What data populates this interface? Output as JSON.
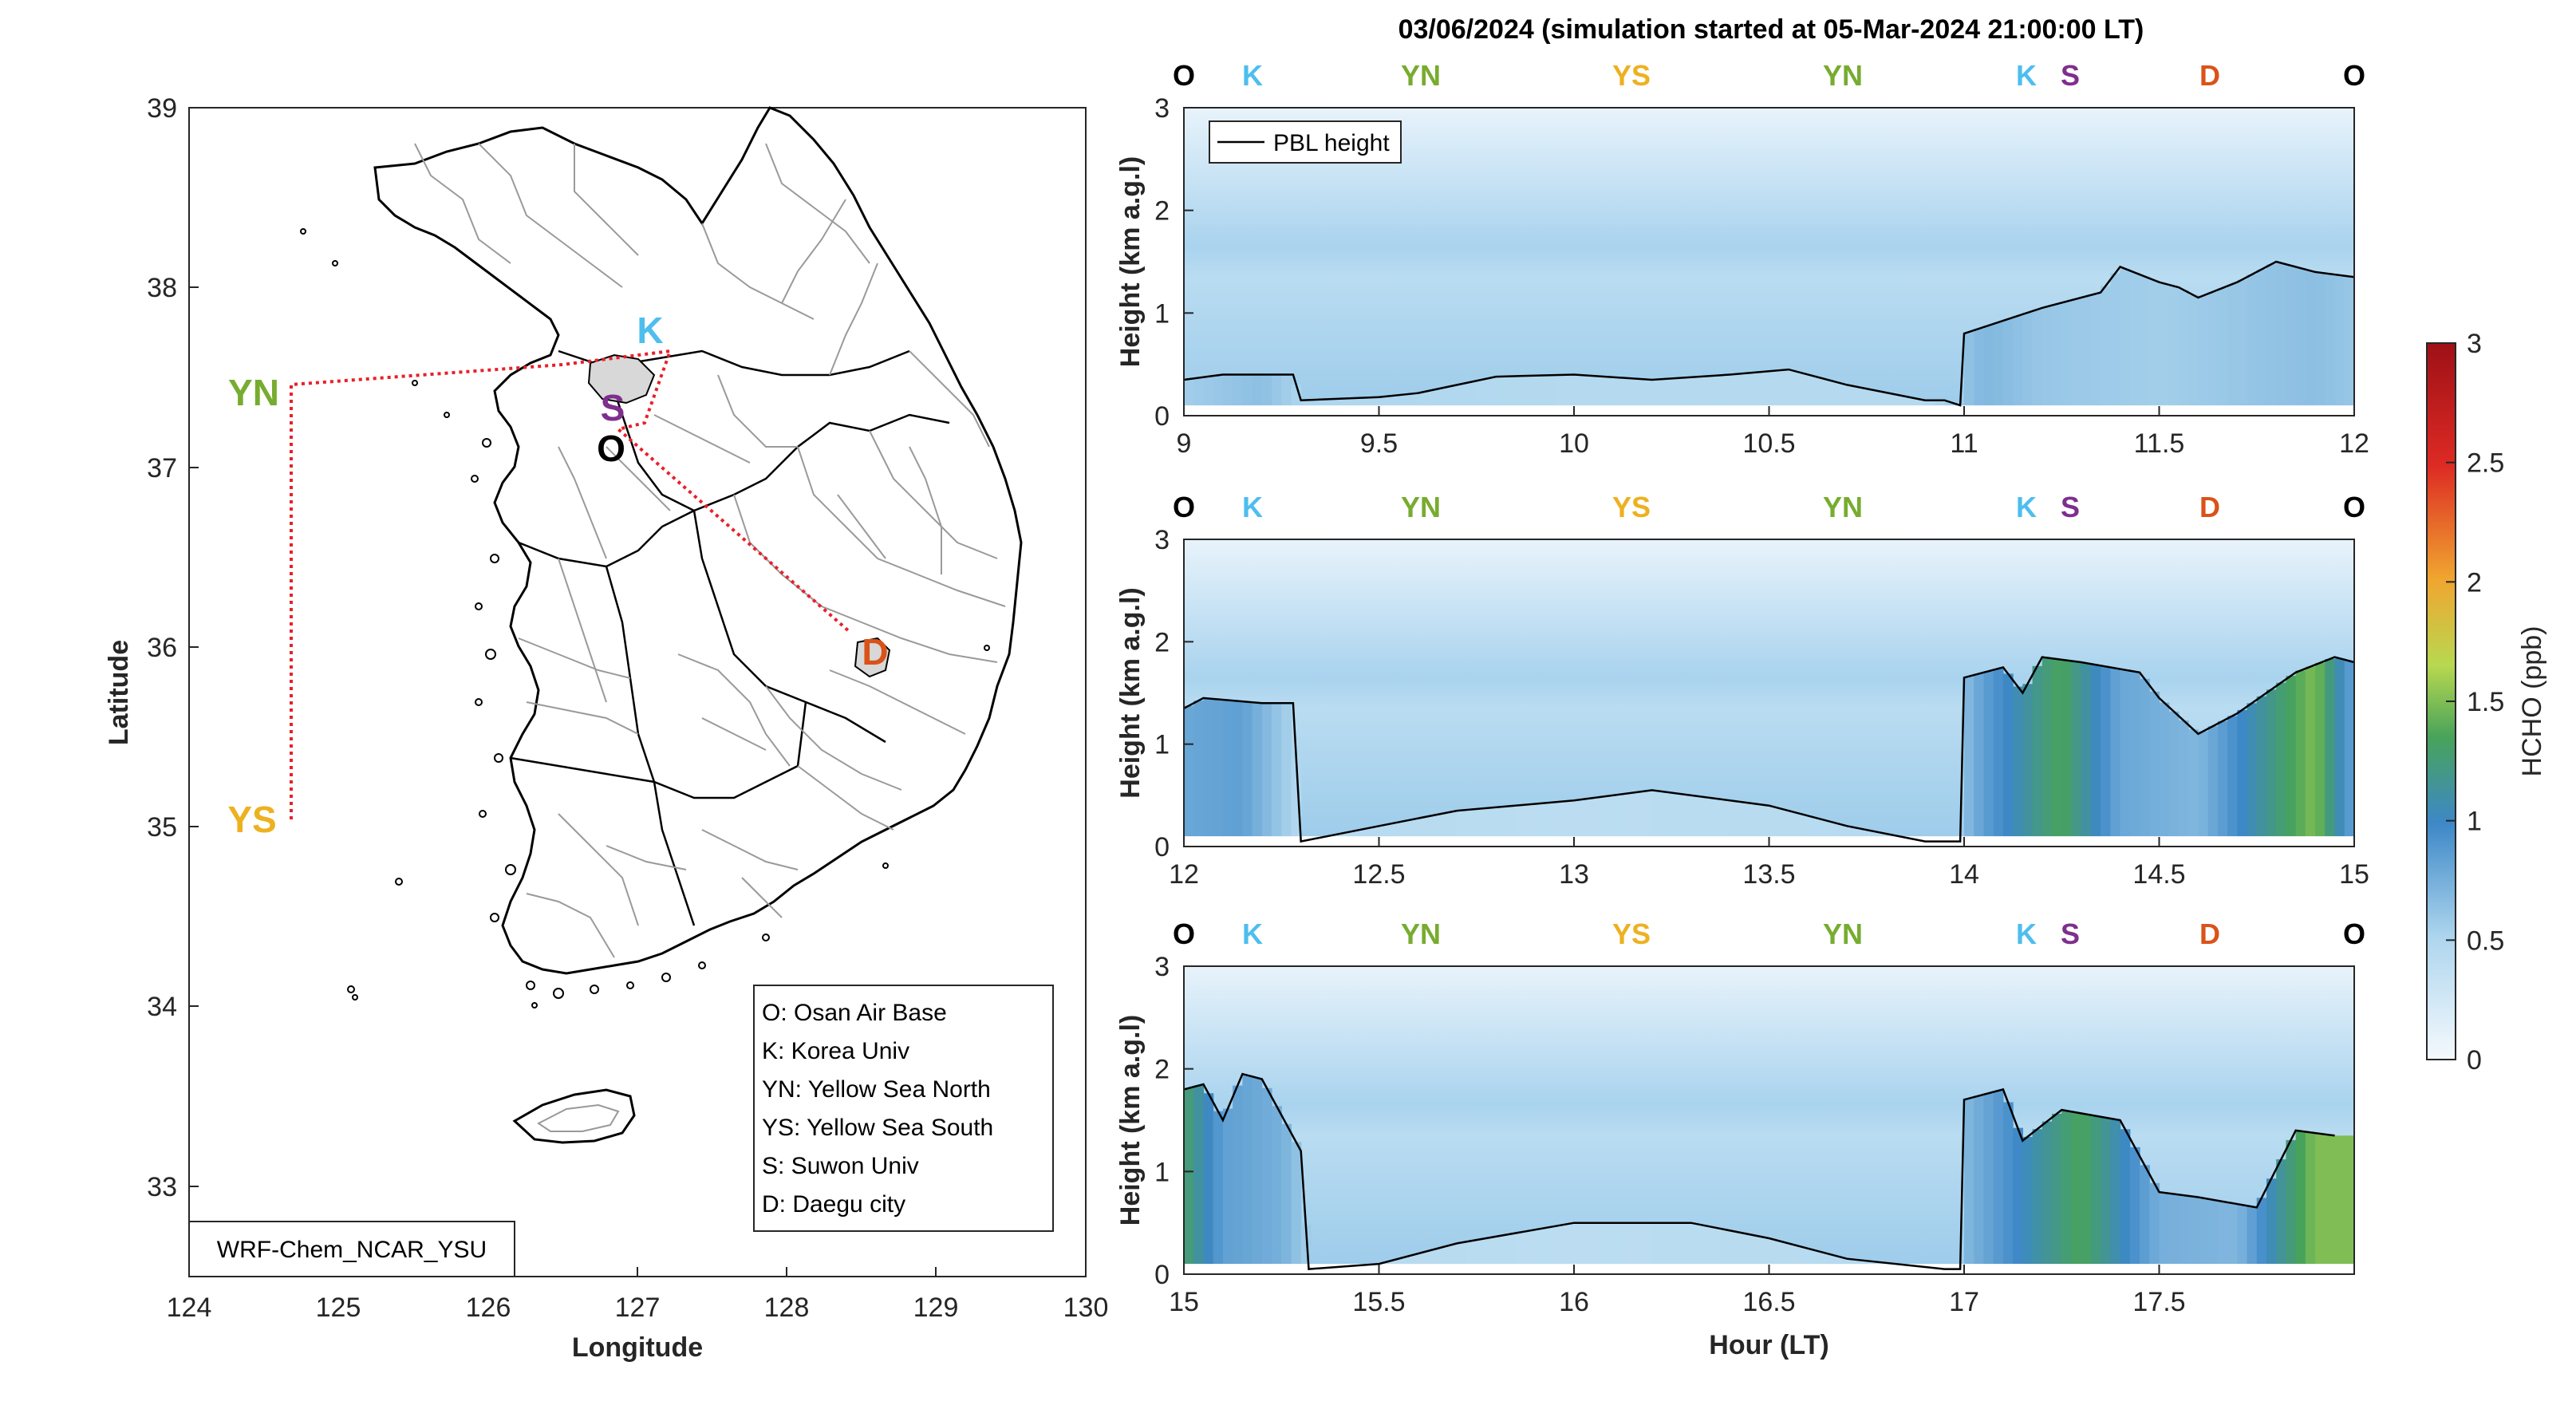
{
  "title": "03/06/2024 (simulation started at 05-Mar-2024 21:00:00 LT)",
  "colors": {
    "O": "#000000",
    "K": "#4DBEEE",
    "YN": "#77AC30",
    "YS": "#EDB120",
    "S": "#7E2F8E",
    "D": "#D95319",
    "route": "#E8202A"
  },
  "map": {
    "xlabel": "Longitude",
    "ylabel": "Latitude",
    "xticks": [
      "124",
      "125",
      "126",
      "127",
      "128",
      "129",
      "130"
    ],
    "yticks": [
      "33",
      "34",
      "35",
      "36",
      "37",
      "38",
      "39"
    ],
    "xlim": [
      124,
      130
    ],
    "ylim": [
      32.5,
      39
    ],
    "model_label": "WRF-Chem_NCAR_YSU",
    "legend": [
      "O: Osan Air Base",
      "K: Korea Univ",
      "YN: Yellow Sea North",
      "YS: Yellow Sea South",
      "S: Suwon Univ",
      "D: Daegu city"
    ],
    "markers": {
      "K": "K",
      "S": "S",
      "O": "O",
      "D": "D",
      "YN": "YN",
      "YS": "YS"
    }
  },
  "colorbar": {
    "label": "HCHO (ppb)",
    "ticks": [
      "0",
      "0.5",
      "1",
      "1.5",
      "2",
      "2.5",
      "3"
    ],
    "range": [
      0,
      3
    ]
  },
  "chart_data": [
    {
      "type": "heatmap",
      "xlabel": "",
      "ylabel": "Height (km a.g.l)",
      "xlim": [
        9,
        12
      ],
      "ylim": [
        0,
        3
      ],
      "xticks": [
        "9",
        "9.5",
        "10",
        "10.5",
        "11",
        "11.5",
        "12"
      ],
      "yticks": [
        "0",
        "1",
        "2",
        "3"
      ],
      "site_labels": [
        "O",
        "K",
        "YN",
        "YS",
        "YN",
        "K",
        "S",
        "D",
        "O"
      ],
      "legend": "PBL height",
      "pbl": {
        "x": [
          9.0,
          9.1,
          9.2,
          9.28,
          9.3,
          9.5,
          9.6,
          9.8,
          10.0,
          10.2,
          10.4,
          10.55,
          10.7,
          10.9,
          10.95,
          10.99,
          11.0,
          11.2,
          11.35,
          11.4,
          11.5,
          11.55,
          11.6,
          11.7,
          11.8,
          11.9,
          12.0
        ],
        "y": [
          0.35,
          0.4,
          0.4,
          0.4,
          0.15,
          0.18,
          0.22,
          0.38,
          0.4,
          0.35,
          0.4,
          0.45,
          0.3,
          0.15,
          0.15,
          0.1,
          0.8,
          1.05,
          1.2,
          1.45,
          1.3,
          1.25,
          1.15,
          1.3,
          1.5,
          1.4,
          1.35
        ]
      },
      "hcho_columns": {
        "x": [
          9.0,
          9.2,
          9.3,
          10.0,
          10.9,
          11.05,
          11.2,
          11.5,
          11.9,
          12.0
        ],
        "surface_ppb": [
          0.55,
          0.65,
          0.5,
          0.45,
          0.45,
          0.7,
          0.6,
          0.55,
          0.65,
          0.6
        ]
      }
    },
    {
      "type": "heatmap",
      "xlabel": "",
      "ylabel": "Height (km a.g.l)",
      "xlim": [
        12,
        15
      ],
      "ylim": [
        0,
        3
      ],
      "xticks": [
        "12",
        "12.5",
        "13",
        "13.5",
        "14",
        "14.5",
        "15"
      ],
      "yticks": [
        "0",
        "1",
        "2",
        "3"
      ],
      "site_labels": [
        "O",
        "K",
        "YN",
        "YS",
        "YN",
        "K",
        "S",
        "D",
        "O"
      ],
      "pbl": {
        "x": [
          12.0,
          12.05,
          12.2,
          12.28,
          12.3,
          12.5,
          12.7,
          13.0,
          13.2,
          13.5,
          13.7,
          13.9,
          13.99,
          14.0,
          14.1,
          14.15,
          14.2,
          14.3,
          14.45,
          14.5,
          14.6,
          14.7,
          14.85,
          14.95,
          15.0
        ],
        "y": [
          1.35,
          1.45,
          1.4,
          1.4,
          0.05,
          0.2,
          0.35,
          0.45,
          0.55,
          0.4,
          0.2,
          0.05,
          0.05,
          1.65,
          1.75,
          1.5,
          1.85,
          1.8,
          1.7,
          1.45,
          1.1,
          1.3,
          1.7,
          1.85,
          1.8
        ]
      },
      "hcho_columns": {
        "x": [
          12.0,
          12.15,
          12.3,
          13.0,
          13.95,
          14.05,
          14.25,
          14.4,
          14.6,
          14.9,
          15.0
        ],
        "surface_ppb": [
          0.8,
          0.85,
          0.45,
          0.4,
          0.45,
          0.85,
          1.35,
          0.8,
          0.7,
          1.5,
          0.8
        ]
      }
    },
    {
      "type": "heatmap",
      "xlabel": "Hour (LT)",
      "ylabel": "Height (km a.g.l)",
      "xlim": [
        15,
        18
      ],
      "ylim": [
        0,
        3
      ],
      "xticks": [
        "15",
        "15.5",
        "16",
        "16.5",
        "17",
        "17.5"
      ],
      "yticks": [
        "0",
        "1",
        "2",
        "3"
      ],
      "site_labels": [
        "O",
        "K",
        "YN",
        "YS",
        "YN",
        "K",
        "S",
        "D",
        "O"
      ],
      "pbl": {
        "x": [
          15.0,
          15.05,
          15.1,
          15.15,
          15.2,
          15.3,
          15.32,
          15.5,
          15.7,
          16.0,
          16.3,
          16.5,
          16.7,
          16.95,
          16.99,
          17.0,
          17.1,
          17.15,
          17.25,
          17.4,
          17.5,
          17.6,
          17.75,
          17.85,
          17.95
        ],
        "y": [
          1.8,
          1.85,
          1.5,
          1.95,
          1.9,
          1.2,
          0.05,
          0.1,
          0.3,
          0.5,
          0.5,
          0.35,
          0.15,
          0.05,
          0.05,
          1.7,
          1.8,
          1.3,
          1.6,
          1.5,
          0.8,
          0.75,
          0.65,
          1.4,
          1.35
        ]
      },
      "hcho_columns": {
        "x": [
          15.0,
          15.1,
          15.25,
          15.35,
          16.0,
          16.9,
          17.05,
          17.3,
          17.5,
          17.7,
          17.9
        ],
        "surface_ppb": [
          1.3,
          0.85,
          0.75,
          0.45,
          0.4,
          0.45,
          0.8,
          1.35,
          0.75,
          0.7,
          1.5
        ]
      }
    }
  ]
}
